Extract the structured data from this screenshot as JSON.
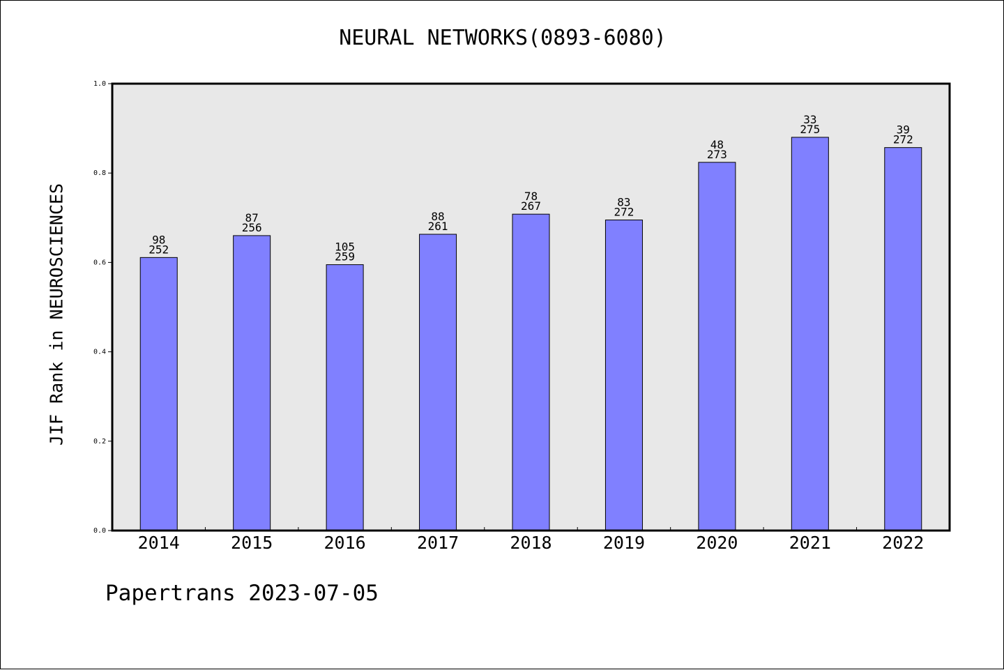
{
  "chart_data": {
    "type": "bar",
    "title": "NEURAL NETWORKS(0893-6080)",
    "xlabel": "",
    "ylabel": "JIF Rank in NEUROSCIENCES",
    "footer": "Papertrans 2023-07-05",
    "ylim": [
      0.0,
      1.0
    ],
    "yticks": [
      "0.0",
      "0.2",
      "0.4",
      "0.6",
      "0.8",
      "1.0"
    ],
    "grid": false,
    "categories": [
      "2014",
      "2015",
      "2016",
      "2017",
      "2018",
      "2019",
      "2020",
      "2021",
      "2022"
    ],
    "values": [
      0.611,
      0.66,
      0.595,
      0.663,
      0.708,
      0.695,
      0.824,
      0.88,
      0.857
    ],
    "ranks": [
      "98",
      "87",
      "105",
      "88",
      "78",
      "83",
      "48",
      "33",
      "39"
    ],
    "totals": [
      "252",
      "256",
      "259",
      "261",
      "267",
      "272",
      "273",
      "275",
      "272"
    ],
    "colors": {
      "bar": "#8080ff",
      "plot_bg": "#e8e8e8",
      "axis": "#000000"
    }
  }
}
